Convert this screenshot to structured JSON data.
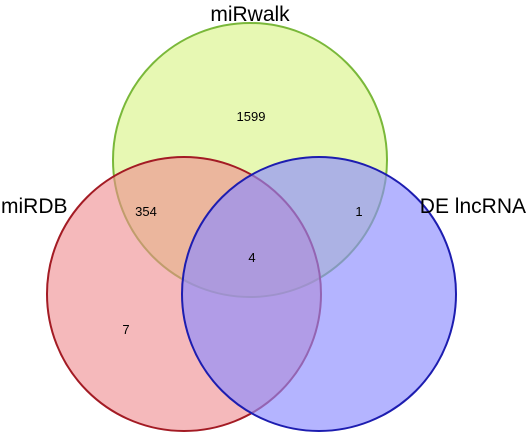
{
  "diagram": {
    "type": "venn",
    "sets": [
      {
        "key": "mirwalk",
        "label": "miRwalk",
        "fill": "#e3f7a6",
        "stroke": "#7ab83a",
        "fill_opacity": 0.85
      },
      {
        "key": "mirdb",
        "label": "miRDB",
        "fill": "#ef8a8e",
        "stroke": "#a31b24",
        "fill_opacity": 0.6
      },
      {
        "key": "de_lncrna",
        "label": "DE lncRNA",
        "fill": "#8c8cff",
        "stroke": "#1d1db0",
        "fill_opacity": 0.65
      }
    ],
    "regions": [
      {
        "key": "mirwalk_only",
        "sets": [
          "mirwalk"
        ],
        "count": "1599"
      },
      {
        "key": "mirwalk_mirdb",
        "sets": [
          "mirwalk",
          "mirdb"
        ],
        "count": "354"
      },
      {
        "key": "mirwalk_de_lncrna",
        "sets": [
          "mirwalk",
          "de_lncrna"
        ],
        "count": "1"
      },
      {
        "key": "all_three",
        "sets": [
          "mirwalk",
          "mirdb",
          "de_lncrna"
        ],
        "count": "4"
      },
      {
        "key": "mirdb_only",
        "sets": [
          "mirdb"
        ],
        "count": "7"
      }
    ]
  }
}
